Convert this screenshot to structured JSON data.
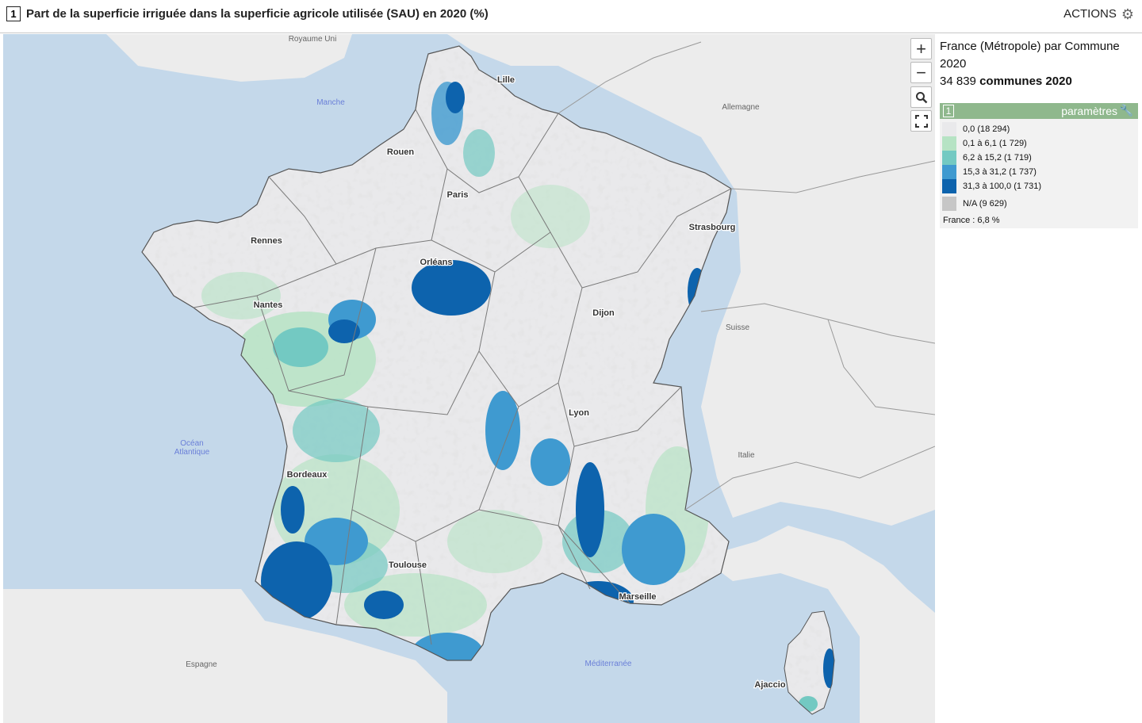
{
  "header": {
    "num": "1",
    "title": "Part de la superficie irriguée dans la superficie agricole utilisée (SAU) en 2020 (%)",
    "actions_label": "ACTIONS"
  },
  "controls": {
    "zoom_in": "+",
    "zoom_out": "−"
  },
  "map": {
    "labels": {
      "royaume_uni": "Royaume Uni",
      "manche": "Manche",
      "allemagne": "Allemagne",
      "suisse": "Suisse",
      "italie": "Italie",
      "espagne": "Espagne",
      "ocean": "Océan",
      "atlantique": "Atlantique",
      "mediterranee": "Méditerranée",
      "lille": "Lille",
      "rouen": "Rouen",
      "paris": "Paris",
      "strasbourg": "Strasbourg",
      "rennes": "Rennes",
      "orleans": "Orléans",
      "nantes": "Nantes",
      "dijon": "Dijon",
      "lyon": "Lyon",
      "bordeaux": "Bordeaux",
      "toulouse": "Toulouse",
      "marseille": "Marseille",
      "ajaccio": "Ajaccio"
    },
    "colors": {
      "c0": "#e9e9eb",
      "c1": "#b6e3c4",
      "c2": "#73c9c2",
      "c3": "#3f9ad0",
      "c4": "#0d63ad",
      "na": "#c6c6c6",
      "sea": "#c4d8ea",
      "land": "#ededed"
    }
  },
  "panel": {
    "line1": "France (Métropole) par Commune",
    "line2": "2020",
    "count": "34 839",
    "count_label": "communes 2020"
  },
  "legend": {
    "num": "1",
    "params_label": "paramètres",
    "items": [
      {
        "label": "0,0 (18 294)",
        "color": "#e9e9eb"
      },
      {
        "label": "0,1 à 6,1 (1 729)",
        "color": "#b6e3c4"
      },
      {
        "label": "6,2 à 15,2 (1 719)",
        "color": "#73c9c2"
      },
      {
        "label": "15,3 à 31,2 (1 737)",
        "color": "#3f9ad0"
      },
      {
        "label": "31,3 à 100,0 (1 731)",
        "color": "#0d63ad"
      }
    ],
    "na_label": "N/A (9 629)",
    "na_color": "#c6c6c6",
    "france_value": "France : 6,8 %"
  }
}
